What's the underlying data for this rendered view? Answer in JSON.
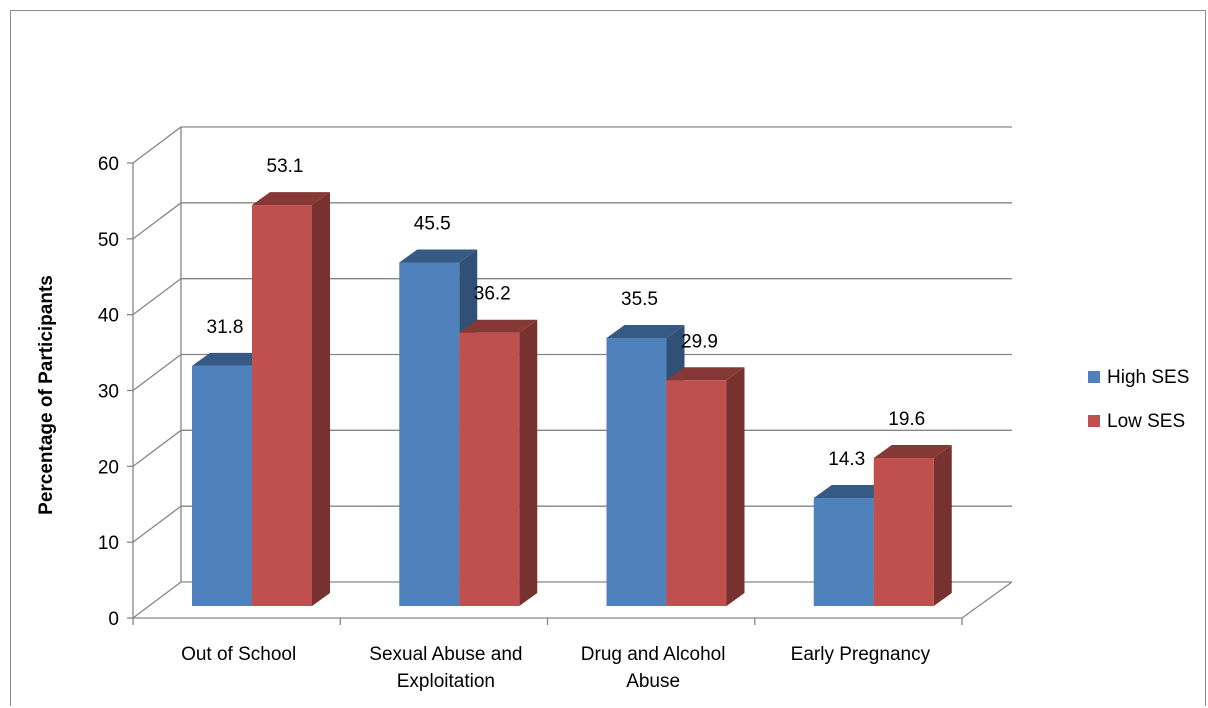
{
  "chart_data": {
    "type": "bar",
    "title": "",
    "xlabel": "",
    "ylabel": "Percentage of Participants",
    "ylim": [
      0,
      60
    ],
    "yticks": [
      "0",
      "10",
      "20",
      "30",
      "40",
      "50",
      "60"
    ],
    "categories": [
      [
        "Out of School"
      ],
      [
        "Sexual Abuse and",
        "Exploitation"
      ],
      [
        "Drug and Alcohol",
        "Abuse"
      ],
      [
        "Early Pregnancy"
      ]
    ],
    "series": [
      {
        "name": "High SES",
        "values": [
          31.8,
          45.5,
          35.5,
          14.3
        ],
        "labels": [
          "31.8",
          "45.5",
          "35.5",
          "14.3"
        ],
        "color": "#4F81BD"
      },
      {
        "name": "Low SES",
        "values": [
          53.1,
          36.2,
          29.9,
          19.6
        ],
        "labels": [
          "53.1",
          "36.2",
          "29.9",
          "19.6"
        ],
        "color": "#C0504D"
      }
    ],
    "grid": true,
    "legend_position": "right",
    "style": "3d-clustered-column"
  }
}
